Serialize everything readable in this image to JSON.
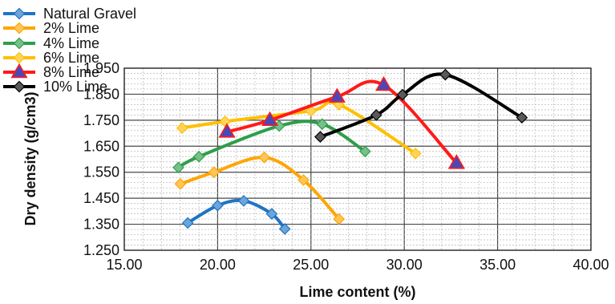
{
  "chart_data": {
    "type": "line",
    "xlabel": "Lime content (%)",
    "ylabel": "Dry density (g/cm3)",
    "xlim": [
      15,
      40
    ],
    "ylim": [
      1.25,
      1.95
    ],
    "x_ticks": [
      "15.00",
      "20.00",
      "25.00",
      "30.00",
      "35.00",
      "40.00"
    ],
    "y_ticks": [
      "1.250",
      "1.350",
      "1.450",
      "1.550",
      "1.650",
      "1.750",
      "1.850",
      "1.950"
    ],
    "grid": "on",
    "legend_position": "top-left",
    "series": [
      {
        "name": "Natural Gravel",
        "color": "#1f74c4",
        "marker": "diamond",
        "x": [
          18.4,
          20.0,
          21.4,
          22.9,
          23.6
        ],
        "y": [
          1.355,
          1.422,
          1.44,
          1.39,
          1.332
        ]
      },
      {
        "name": "2% Lime",
        "color": "#ffa500",
        "marker": "diamond",
        "x": [
          18.0,
          19.8,
          22.5,
          24.6,
          26.5
        ],
        "y": [
          1.505,
          1.55,
          1.607,
          1.52,
          1.37
        ]
      },
      {
        "name": "4% Lime",
        "color": "#2e9e4a",
        "marker": "diamond",
        "x": [
          17.9,
          19.0,
          23.3,
          25.6,
          27.9
        ],
        "y": [
          1.568,
          1.61,
          1.728,
          1.735,
          1.63
        ]
      },
      {
        "name": "6% Lime",
        "color": "#ffbf00",
        "marker": "diamond",
        "x": [
          18.1,
          20.4,
          25.0,
          26.5,
          30.6
        ],
        "y": [
          1.72,
          1.745,
          1.786,
          1.81,
          1.622
        ]
      },
      {
        "name": "8% Lime",
        "color": "#ff1a1a",
        "marker": "triangle",
        "x": [
          20.5,
          22.8,
          26.4,
          28.9,
          32.8
        ],
        "y": [
          1.705,
          1.75,
          1.84,
          1.885,
          1.585
        ]
      },
      {
        "name": "10% Lime",
        "color": "#000000",
        "marker": "diamond",
        "x": [
          25.5,
          28.5,
          29.9,
          32.2,
          36.3
        ],
        "y": [
          1.686,
          1.77,
          1.848,
          1.925,
          1.76
        ]
      }
    ]
  }
}
